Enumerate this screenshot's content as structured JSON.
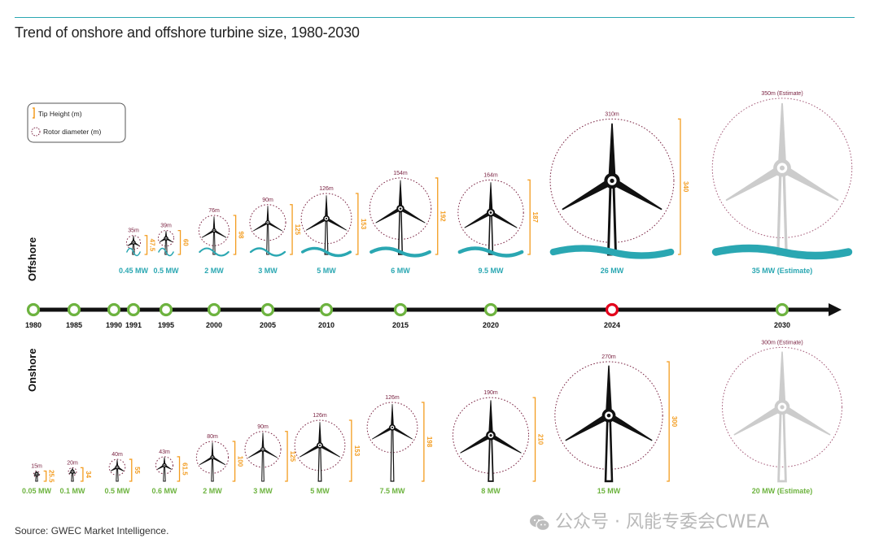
{
  "title": "Trend of onshore and offshore turbine size, 1980-2030",
  "source": "Source: GWEC Market Intelligence.",
  "watermark": "公众号 · 风能专委会CWEA",
  "chart_data": {
    "type": "other",
    "subtype": "pictogram-timeline",
    "legend": [
      {
        "symbol": "tip-height-bracket",
        "label": "Tip Height (m)",
        "color": "#f39c1f"
      },
      {
        "symbol": "rotor-dashed-circle",
        "label": "Rotor diameter (m)",
        "color": "#7b2443"
      }
    ],
    "timeline": {
      "years": [
        "1980",
        "1985",
        "1990",
        "1991",
        "1995",
        "2000",
        "2005",
        "2010",
        "2015",
        "2020",
        "2024",
        "2030"
      ],
      "highlight_year": "2024"
    },
    "offshore": {
      "label": "Offshore",
      "turbines": [
        {
          "year": "1991",
          "rotor_label": "35m",
          "tip_height_label": "47.5",
          "rotor_m": 35,
          "tip_height_m": 47.5,
          "capacity": "0.45 MW",
          "estimate": false
        },
        {
          "year": "1995",
          "rotor_label": "39m",
          "tip_height_label": "60",
          "rotor_m": 39,
          "tip_height_m": 60,
          "capacity": "0.5 MW",
          "estimate": false
        },
        {
          "year": "2000",
          "rotor_label": "76m",
          "tip_height_label": "98",
          "rotor_m": 76,
          "tip_height_m": 98,
          "capacity": "2 MW",
          "estimate": false
        },
        {
          "year": "2005",
          "rotor_label": "90m",
          "tip_height_label": "125",
          "rotor_m": 90,
          "tip_height_m": 125,
          "capacity": "3 MW",
          "estimate": false
        },
        {
          "year": "2010",
          "rotor_label": "126m",
          "tip_height_label": "153",
          "rotor_m": 126,
          "tip_height_m": 153,
          "capacity": "5 MW",
          "estimate": false
        },
        {
          "year": "2015",
          "rotor_label": "154m",
          "tip_height_label": "192",
          "rotor_m": 154,
          "tip_height_m": 192,
          "capacity": "6 MW",
          "estimate": false
        },
        {
          "year": "2020",
          "rotor_label": "164m",
          "tip_height_label": "187",
          "rotor_m": 164,
          "tip_height_m": 187,
          "capacity": "9.5 MW",
          "estimate": false
        },
        {
          "year": "2024",
          "rotor_label": "310m",
          "tip_height_label": "340",
          "rotor_m": 310,
          "tip_height_m": 340,
          "capacity": "26 MW",
          "estimate": false
        },
        {
          "year": "2030",
          "rotor_label": "350m (Estimate)",
          "tip_height_label": "",
          "rotor_m": 350,
          "tip_height_m": null,
          "capacity": "35 MW (Estimate)",
          "estimate": true
        }
      ]
    },
    "onshore": {
      "label": "Onshore",
      "turbines": [
        {
          "year": "1980",
          "rotor_label": "15m",
          "tip_height_label": "25.5",
          "rotor_m": 15,
          "tip_height_m": 25.5,
          "capacity": "0.05 MW",
          "estimate": false
        },
        {
          "year": "1985",
          "rotor_label": "20m",
          "tip_height_label": "34",
          "rotor_m": 20,
          "tip_height_m": 34,
          "capacity": "0.1 MW",
          "estimate": false
        },
        {
          "year": "1990",
          "rotor_label": "40m",
          "tip_height_label": "55",
          "rotor_m": 40,
          "tip_height_m": 55,
          "capacity": "0.5 MW",
          "estimate": false
        },
        {
          "year": "1995",
          "rotor_label": "43m",
          "tip_height_label": "61.5",
          "rotor_m": 43,
          "tip_height_m": 61.5,
          "capacity": "0.6 MW",
          "estimate": false
        },
        {
          "year": "2000",
          "rotor_label": "80m",
          "tip_height_label": "100",
          "rotor_m": 80,
          "tip_height_m": 100,
          "capacity": "2 MW",
          "estimate": false
        },
        {
          "year": "2005",
          "rotor_label": "90m",
          "tip_height_label": "125",
          "rotor_m": 90,
          "tip_height_m": 125,
          "capacity": "3 MW",
          "estimate": false
        },
        {
          "year": "2010",
          "rotor_label": "126m",
          "tip_height_label": "153",
          "rotor_m": 126,
          "tip_height_m": 153,
          "capacity": "5 MW",
          "estimate": false
        },
        {
          "year": "2015",
          "rotor_label": "126m",
          "tip_height_label": "198",
          "rotor_m": 126,
          "tip_height_m": 198,
          "capacity": "7.5 MW",
          "estimate": false
        },
        {
          "year": "2020",
          "rotor_label": "190m",
          "tip_height_label": "210",
          "rotor_m": 190,
          "tip_height_m": 210,
          "capacity": "8 MW",
          "estimate": false
        },
        {
          "year": "2024",
          "rotor_label": "270m",
          "tip_height_label": "300",
          "rotor_m": 270,
          "tip_height_m": 300,
          "capacity": "15 MW",
          "estimate": false
        },
        {
          "year": "2030",
          "rotor_label": "300m (Estimate)",
          "tip_height_label": "",
          "rotor_m": 300,
          "tip_height_m": null,
          "capacity": "20 MW (Estimate)",
          "estimate": true
        }
      ]
    },
    "colors": {
      "tip_height": "#f39c1f",
      "rotor": "#7b2443",
      "offshore_capacity": "#2aa7b2",
      "onshore_capacity": "#6db33f",
      "timeline_node": "#6db33f",
      "timeline_highlight": "#e3001b",
      "turbine": "#111111",
      "estimate_turbine": "#cccccc"
    }
  }
}
